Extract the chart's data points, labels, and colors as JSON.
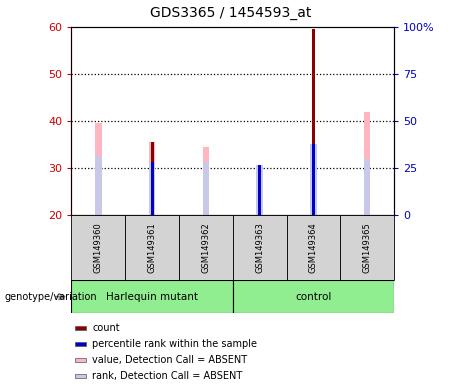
{
  "title": "GDS3365 / 1454593_at",
  "samples": [
    "GSM149360",
    "GSM149361",
    "GSM149362",
    "GSM149363",
    "GSM149364",
    "GSM149365"
  ],
  "group_labels": [
    "Harlequin mutant",
    "control"
  ],
  "group_split": 3,
  "group_color": "#90EE90",
  "ylim_left": [
    20,
    60
  ],
  "ylim_right": [
    0,
    100
  ],
  "yticks_left": [
    20,
    30,
    40,
    50,
    60
  ],
  "yticks_right": [
    0,
    25,
    50,
    75,
    100
  ],
  "ytick_labels_right": [
    "0",
    "25",
    "50",
    "75",
    "100%"
  ],
  "left_tick_color": "#cc0000",
  "right_tick_color": "#0000cc",
  "baseline": 20,
  "pink_bar_tops": [
    39.5,
    35.5,
    34.5,
    29.5,
    35.0,
    42.0
  ],
  "lavender_bar_tops": [
    32.5,
    31.3,
    31.3,
    30.7,
    35.0,
    32.0
  ],
  "dark_red_bar_tops": [
    null,
    35.5,
    null,
    null,
    59.5,
    null
  ],
  "blue_bar_tops": [
    null,
    31.2,
    null,
    30.7,
    35.0,
    null
  ],
  "pink_color": "#FFB6C1",
  "lavender_color": "#C8C8E8",
  "dark_red_color": "#8B0000",
  "blue_color": "#0000CD",
  "legend_items": [
    {
      "color": "#8B0000",
      "label": "count"
    },
    {
      "color": "#0000CD",
      "label": "percentile rank within the sample"
    },
    {
      "color": "#FFB6C1",
      "label": "value, Detection Call = ABSENT"
    },
    {
      "color": "#C8C8E8",
      "label": "rank, Detection Call = ABSENT"
    }
  ],
  "genotype_label": "genotype/variation",
  "grid_dotted_at": [
    30,
    40,
    50
  ],
  "gray_box_color": "#d3d3d3"
}
